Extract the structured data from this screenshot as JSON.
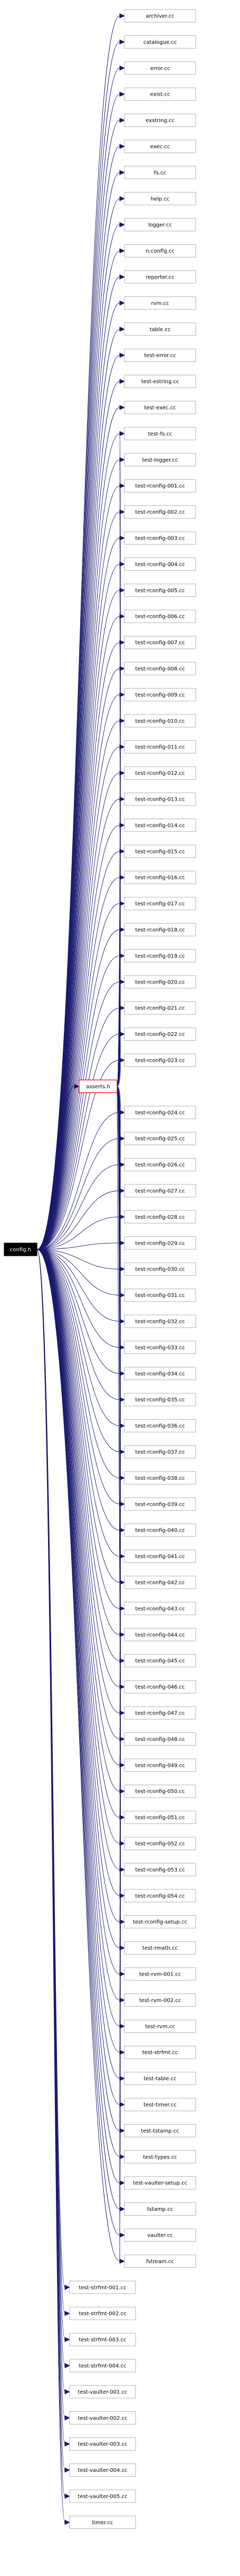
{
  "root": {
    "label": "config.h",
    "fill": "#000000",
    "text_color": "#ffffff"
  },
  "intermediate": {
    "label": "asserts.h",
    "border": "#ff0000",
    "text_color": "#000000"
  },
  "colors": {
    "edge": "#191970",
    "node_border": "#bfbfbf",
    "node_fill": "#ffffff"
  },
  "files": [
    "archiver.cc",
    "catalogue.cc",
    "error.cc",
    "exist.cc",
    "exstring.cc",
    "exec.cc",
    "fs.cc",
    "help.cc",
    "logger.cc",
    "n:config.cc",
    "reporter.cc",
    "rvm.cc",
    "table.cc",
    "test-error.cc",
    "test-estring.cc",
    "test-exec.cc",
    "test-fs.cc",
    "test-logger.cc",
    "test-rconfig-001.cc",
    "test-rconfig-002.cc",
    "test-rconfig-003.cc",
    "test-rconfig-004.cc",
    "test-rconfig-005.cc",
    "test-rconfig-006.cc",
    "test-rconfig-007.cc",
    "test-rconfig-008.cc",
    "test-rconfig-009.cc",
    "test-rconfig-010.cc",
    "test-rconfig-011.cc",
    "test-rconfig-012.cc",
    "test-rconfig-013.cc",
    "test-rconfig-014.cc",
    "test-rconfig-015.cc",
    "test-rconfig-016.cc",
    "test-rconfig-017.cc",
    "test-rconfig-018.cc",
    "test-rconfig-019.cc",
    "test-rconfig-020.cc",
    "test-rconfig-021.cc",
    "test-rconfig-022.cc",
    "test-rconfig-023.cc",
    "test-rconfig-024.cc",
    "test-rconfig-025.cc",
    "test-rconfig-026.cc",
    "test-rconfig-027.cc",
    "test-rconfig-028.cc",
    "test-rconfig-029.cc",
    "test-rconfig-030.cc",
    "test-rconfig-031.cc",
    "test-rconfig-032.cc",
    "test-rconfig-033.cc",
    "test-rconfig-034.cc",
    "test-rconfig-035.cc",
    "test-rconfig-036.cc",
    "test-rconfig-037.cc",
    "test-rconfig-038.cc",
    "test-rconfig-039.cc",
    "test-rconfig-040.cc",
    "test-rconfig-041.cc",
    "test-rconfig-042.cc",
    "test-rconfig-043.cc",
    "test-rconfig-044.cc",
    "test-rconfig-045.cc",
    "test-rconfig-046.cc",
    "test-rconfig-047.cc",
    "test-rconfig-048.cc",
    "test-rconfig-049.cc",
    "test-rconfig-050.cc",
    "test-rconfig-051.cc",
    "test-rconfig-052.cc",
    "test-rconfig-053.cc",
    "test-rconfig-054.cc",
    "test-rconfig-setup.cc",
    "test-rmath.cc",
    "test-rvm-001.cc",
    "test-rvm-002.cc",
    "test-rvm.cc",
    "test-strfmt.cc",
    "test-table.cc",
    "test-timer.cc",
    "test-tstamp.cc",
    "test-types.cc",
    "test-vaulter-setup.cc",
    "tstamp.cc",
    "vaulter.cc",
    "fstream.cc",
    "test-strfmt-001.cc",
    "test-strfmt-002.cc",
    "test-strfmt-003.cc",
    "test-strfmt-004.cc",
    "test-vaulter-001.cc",
    "test-vaulter-002.cc",
    "test-vaulter-003.cc",
    "test-vaulter-004.cc",
    "test-vaulter-005.cc",
    "timer.cc"
  ],
  "asserts_insert_after": 41,
  "direct_group_end": 85
}
